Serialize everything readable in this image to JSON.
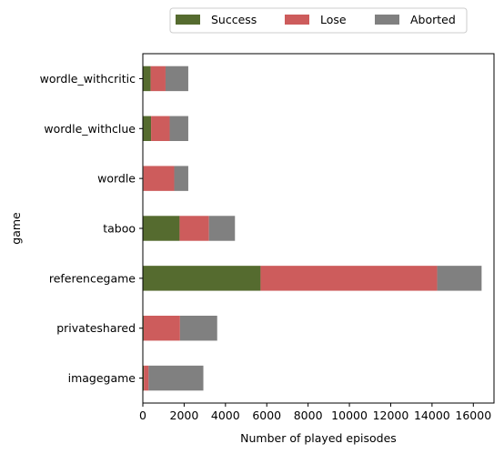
{
  "chart_data": {
    "type": "bar",
    "orientation": "horizontal",
    "stacked": true,
    "categories": [
      "imagegame",
      "privateshared",
      "referencegame",
      "taboo",
      "wordle",
      "wordle_withclue",
      "wordle_withcritic"
    ],
    "series": [
      {
        "name": "Success",
        "color": "#556b2f",
        "values": [
          50,
          40,
          5700,
          1780,
          30,
          400,
          380
        ]
      },
      {
        "name": "Lose",
        "color": "#cd5c5c",
        "values": [
          230,
          1760,
          8550,
          1420,
          1490,
          900,
          720
        ]
      },
      {
        "name": "Aborted",
        "color": "#808080",
        "values": [
          2650,
          1800,
          2150,
          1260,
          680,
          900,
          1100
        ]
      }
    ],
    "xlabel": "Number of played episodes",
    "ylabel": "game",
    "xlim": [
      0,
      17000
    ],
    "xticks": [
      0,
      2000,
      4000,
      6000,
      8000,
      10000,
      12000,
      14000,
      16000
    ],
    "legend": {
      "placement": "top-center",
      "columns": 3
    },
    "grid": false
  }
}
